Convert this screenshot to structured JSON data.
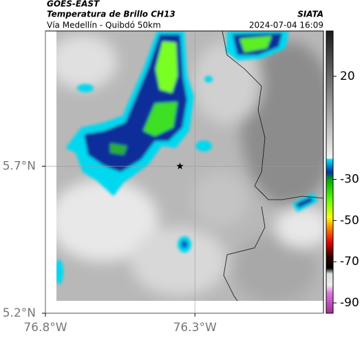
{
  "header": {
    "source": "GOES-EAST",
    "title": "Temperatura de Brillo CH13",
    "subtitle": "Vía Medellín - Quibdó 50km",
    "brand": "SIATA",
    "timestamp": "2024-07-04 16:09"
  },
  "map": {
    "xlim": [
      -76.8,
      -75.87
    ],
    "ylim": [
      5.2,
      6.16
    ],
    "xticks": [
      {
        "value": -76.8,
        "label": "76.8°W"
      },
      {
        "value": -76.3,
        "label": "76.3°W"
      }
    ],
    "yticks": [
      {
        "value": 5.2,
        "label": "5.2°N"
      },
      {
        "value": 5.7,
        "label": "5.7°N"
      }
    ],
    "grid": true,
    "marker": {
      "lon": -76.35,
      "lat": 5.7
    }
  },
  "colorbar": {
    "lim": [
      -95,
      42
    ],
    "ticks": [
      20,
      -30,
      -50,
      -70,
      -90
    ]
  }
}
